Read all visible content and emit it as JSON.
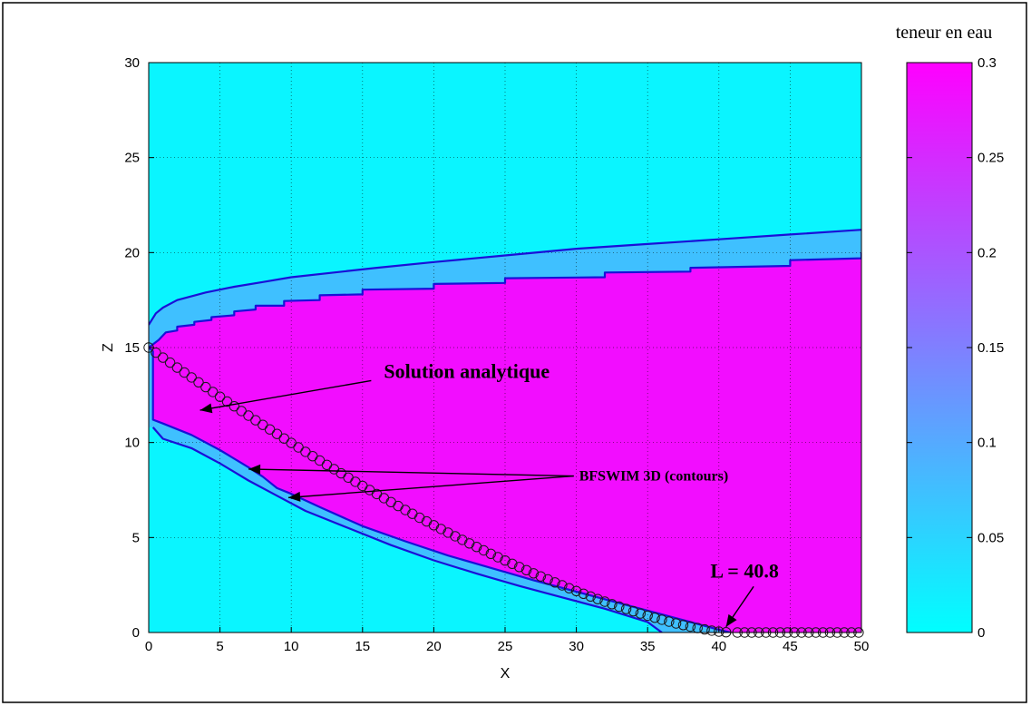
{
  "chart_data": {
    "type": "heatmap",
    "title": "",
    "xlabel": "X",
    "ylabel": "Z",
    "xlim": [
      0,
      50
    ],
    "ylim": [
      0,
      30
    ],
    "grid": true,
    "x_ticks": [
      "0",
      "5",
      "10",
      "15",
      "20",
      "25",
      "30",
      "35",
      "40",
      "45",
      "50"
    ],
    "y_ticks": [
      "0",
      "5",
      "10",
      "15",
      "20",
      "25",
      "30"
    ],
    "colorbar": {
      "label": "teneur en eau",
      "range": [
        0,
        0.3
      ],
      "ticks": [
        "0",
        "0.05",
        "0.1",
        "0.15",
        "0.2",
        "0.25",
        "0.3"
      ],
      "color_min": "#00ffff",
      "color_max": "#ff00ff"
    },
    "background_value": 0,
    "saturated_value": 0.3,
    "series": [
      {
        "kind": "contour",
        "points": [
          [
            0.0,
            16.2
          ],
          [
            0.5,
            16.8
          ],
          [
            1,
            17.1
          ],
          [
            2,
            17.5
          ],
          [
            4,
            17.9
          ],
          [
            6,
            18.2
          ],
          [
            8,
            18.45
          ],
          [
            10,
            18.7
          ],
          [
            13,
            18.95
          ],
          [
            16,
            19.2
          ],
          [
            20,
            19.5
          ],
          [
            25,
            19.85
          ],
          [
            30,
            20.2
          ],
          [
            35,
            20.45
          ],
          [
            40,
            20.7
          ],
          [
            45,
            20.95
          ],
          [
            50,
            21.2
          ]
        ]
      },
      {
        "kind": "contour",
        "points": [
          [
            0,
            15.0
          ],
          [
            0.7,
            15.4
          ],
          [
            1.2,
            15.8
          ],
          [
            2.0,
            15.9
          ],
          [
            2.0,
            16.1
          ],
          [
            3.2,
            16.2
          ],
          [
            3.2,
            16.35
          ],
          [
            4.4,
            16.45
          ],
          [
            4.4,
            16.6
          ],
          [
            6.0,
            16.7
          ],
          [
            6.0,
            16.9
          ],
          [
            7.5,
            17.0
          ],
          [
            7.5,
            17.2
          ],
          [
            9.5,
            17.2
          ],
          [
            9.5,
            17.45
          ],
          [
            12.0,
            17.5
          ],
          [
            12.0,
            17.75
          ],
          [
            15.0,
            17.8
          ],
          [
            15.0,
            18.05
          ],
          [
            20.0,
            18.1
          ],
          [
            20.0,
            18.35
          ],
          [
            25.0,
            18.4
          ],
          [
            25.0,
            18.65
          ],
          [
            32.0,
            18.7
          ],
          [
            32.0,
            18.95
          ],
          [
            38.0,
            19.0
          ],
          [
            38.0,
            19.2
          ],
          [
            45.0,
            19.3
          ],
          [
            45.0,
            19.6
          ],
          [
            50.0,
            19.7
          ],
          [
            50.0,
            20.0
          ]
        ]
      },
      {
        "kind": "contour",
        "points": [
          [
            0,
            15.0
          ],
          [
            0.3,
            14.8
          ],
          [
            0.3,
            11.2
          ],
          [
            1,
            11.0
          ],
          [
            3,
            10.4
          ],
          [
            5,
            9.6
          ],
          [
            7,
            8.7
          ],
          [
            8,
            8.2
          ],
          [
            9,
            7.6
          ],
          [
            10,
            7.3
          ],
          [
            12,
            6.6
          ],
          [
            15,
            5.6
          ],
          [
            18,
            4.8
          ],
          [
            21,
            4.05
          ],
          [
            24,
            3.4
          ],
          [
            27,
            2.75
          ],
          [
            30,
            2.15
          ],
          [
            33,
            1.55
          ],
          [
            36,
            0.95
          ],
          [
            38,
            0.55
          ],
          [
            40,
            0.15
          ],
          [
            40.8,
            0.0
          ]
        ]
      },
      {
        "kind": "contour",
        "points": [
          [
            0.3,
            10.8
          ],
          [
            1,
            10.2
          ],
          [
            3,
            9.7
          ],
          [
            5,
            8.9
          ],
          [
            7,
            8.0
          ],
          [
            9,
            7.2
          ],
          [
            11,
            6.4
          ],
          [
            14,
            5.5
          ],
          [
            17,
            4.6
          ],
          [
            20,
            3.8
          ],
          [
            23,
            3.1
          ],
          [
            26,
            2.45
          ],
          [
            29,
            1.85
          ],
          [
            32,
            1.25
          ],
          [
            35,
            0.55
          ],
          [
            36,
            0.0
          ]
        ]
      },
      {
        "kind": "analytical",
        "markers": "circle"
      }
    ],
    "annotations": [
      {
        "text": "Solution analytique",
        "x": 16.5,
        "y": 13.4,
        "arrow_to": [
          [
            3.6,
            11.7
          ]
        ]
      },
      {
        "text": "BFSWIM 3D (contours)",
        "x": 30.2,
        "y": 8.0,
        "arrow_to": [
          [
            7.0,
            8.6
          ],
          [
            9.8,
            7.1
          ]
        ]
      },
      {
        "text": "L = 40.8",
        "x": 41.8,
        "y": 2.9,
        "arrow_to": [
          [
            40.5,
            0.3
          ]
        ]
      }
    ]
  }
}
